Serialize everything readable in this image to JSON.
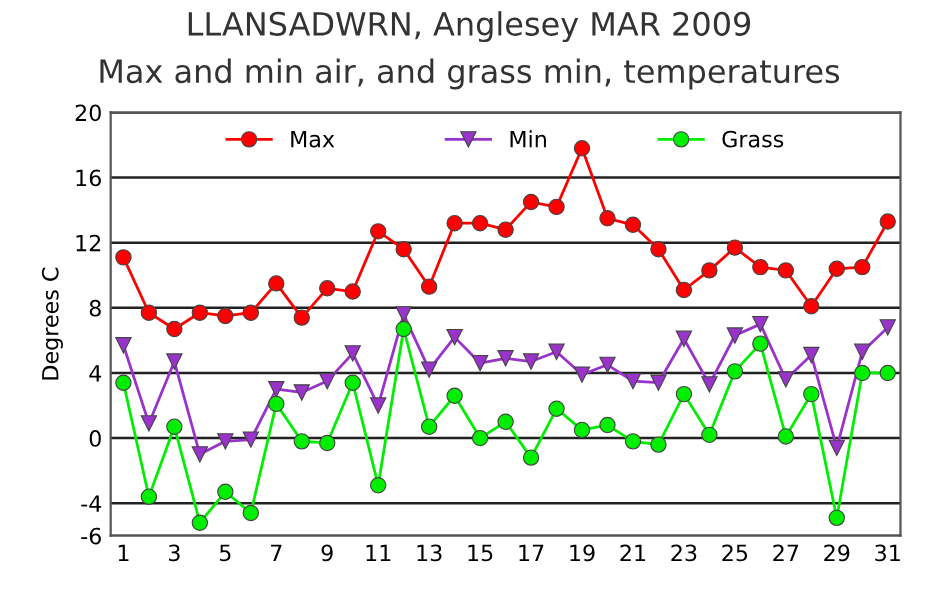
{
  "chart_data": {
    "type": "line",
    "title": "LLANSADWRN, Anglesey MAR 2009",
    "subtitle": "Max and min air, and grass min, temperatures",
    "ylabel": "Degrees C",
    "x": [
      1,
      2,
      3,
      4,
      5,
      6,
      7,
      8,
      9,
      10,
      11,
      12,
      13,
      14,
      15,
      16,
      17,
      18,
      19,
      20,
      21,
      22,
      23,
      24,
      25,
      26,
      27,
      28,
      29,
      30,
      31
    ],
    "xlim": [
      0.5,
      31.5
    ],
    "xticks": [
      1,
      3,
      5,
      7,
      9,
      11,
      13,
      15,
      17,
      19,
      21,
      23,
      25,
      27,
      29,
      31
    ],
    "ylim": [
      -6,
      20
    ],
    "yticks": [
      -6,
      -4,
      0,
      4,
      8,
      12,
      16,
      20
    ],
    "grid": "y",
    "legend": "top",
    "series": [
      {
        "name": "Max",
        "color": "#ff0000",
        "marker": "circle",
        "values": [
          11.1,
          7.7,
          6.7,
          7.7,
          7.5,
          7.7,
          9.5,
          7.4,
          9.2,
          9.0,
          12.7,
          11.6,
          9.3,
          13.2,
          13.2,
          12.8,
          14.5,
          14.2,
          17.8,
          13.5,
          13.1,
          11.6,
          9.1,
          10.3,
          11.7,
          10.5,
          10.3,
          8.1,
          10.4,
          10.5,
          13.3
        ]
      },
      {
        "name": "Min",
        "color": "#9933cc",
        "marker": "triangle",
        "values": [
          5.7,
          0.9,
          4.7,
          -1.0,
          -0.2,
          -0.1,
          3.0,
          2.8,
          3.5,
          5.2,
          2.0,
          7.6,
          4.2,
          6.2,
          4.6,
          4.9,
          4.7,
          5.3,
          3.9,
          4.5,
          3.5,
          3.4,
          6.1,
          3.3,
          6.3,
          7.0,
          3.6,
          5.1,
          -0.6,
          5.3,
          6.8
        ]
      },
      {
        "name": "Grass",
        "color": "#00ee00",
        "marker": "circle",
        "values": [
          3.4,
          -3.6,
          0.7,
          -5.2,
          -3.3,
          -4.6,
          2.1,
          -0.2,
          -0.3,
          3.4,
          -2.9,
          6.7,
          0.7,
          2.6,
          0.0,
          1.0,
          -1.2,
          1.8,
          0.5,
          0.8,
          -0.2,
          -0.4,
          2.7,
          0.2,
          4.1,
          5.8,
          0.1,
          2.7,
          -4.9,
          4.0,
          4.0
        ]
      }
    ]
  }
}
